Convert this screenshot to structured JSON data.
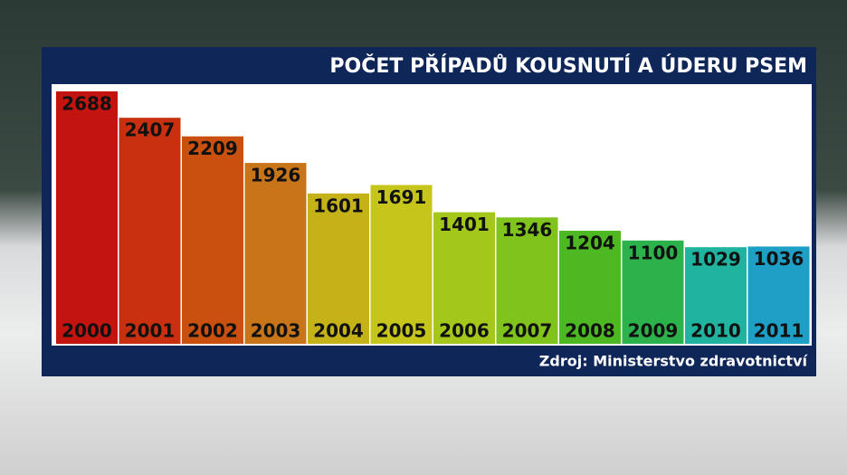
{
  "chart_data": {
    "type": "bar",
    "title": "POČET PŘÍPADŮ KOUSNUTÍ A ÚDERU PSEM",
    "source": "Zdroj: Ministerstvo zdravotnictví",
    "categories": [
      "2000",
      "2001",
      "2002",
      "2003",
      "2004",
      "2005",
      "2006",
      "2007",
      "2008",
      "2009",
      "2010",
      "2011"
    ],
    "values": [
      2688,
      2407,
      2209,
      1926,
      1601,
      1691,
      1401,
      1346,
      1204,
      1100,
      1029,
      1036
    ],
    "colors": [
      "#c4140f",
      "#c8300f",
      "#c9500f",
      "#c87418",
      "#c4b218",
      "#c6c51b",
      "#a3c81b",
      "#7fc31c",
      "#4eb822",
      "#2cb24a",
      "#1fb3a0",
      "#1d9fc6"
    ]
  }
}
